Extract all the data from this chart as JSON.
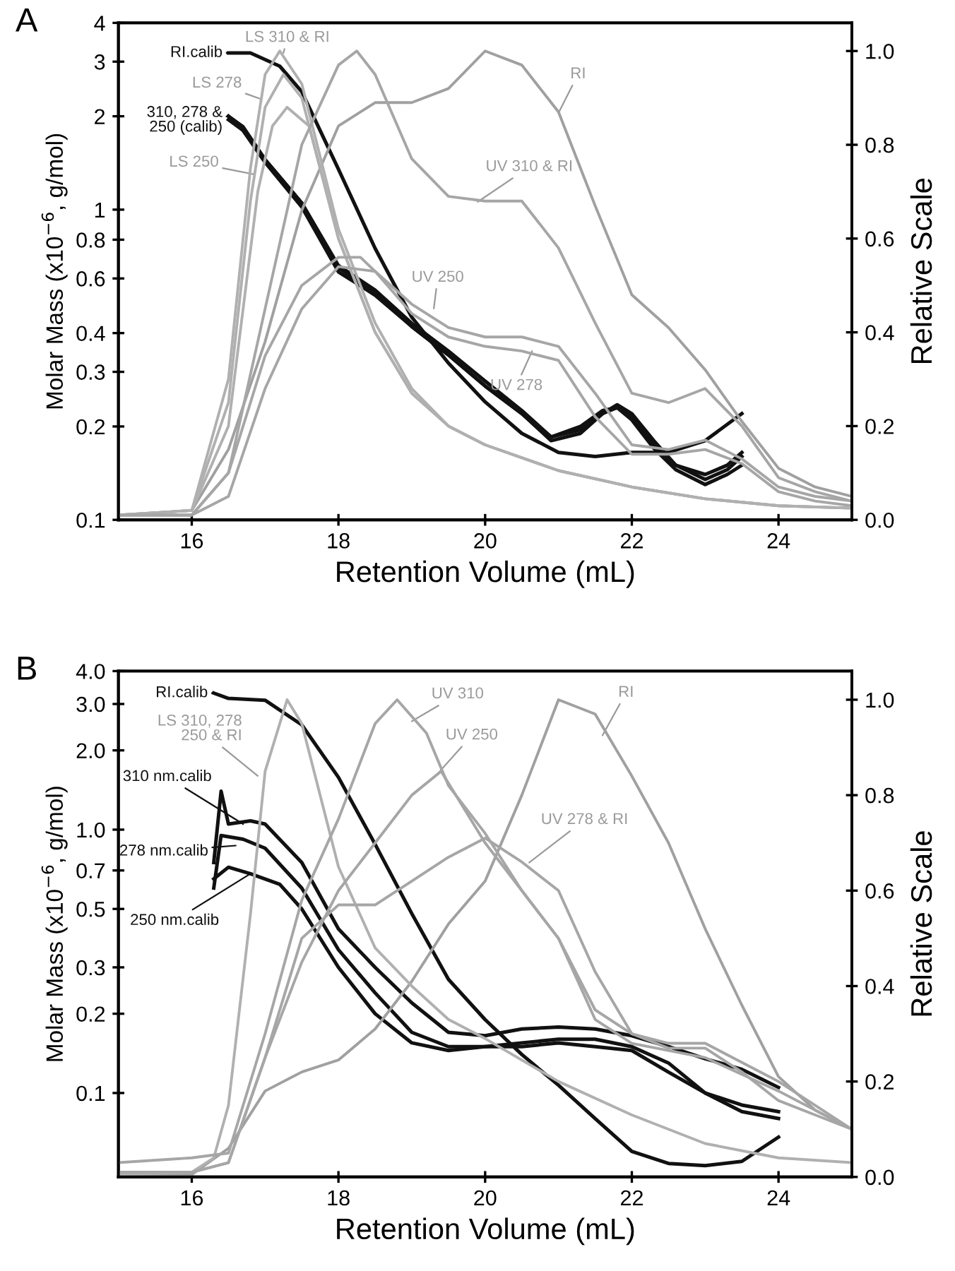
{
  "chart_data": [
    {
      "type": "line",
      "title": "A",
      "xlabel": "Retention Volume (mL)",
      "ylabel": "Molar Mass (x10$^{−6}$, g/mol)",
      "y2label": "Relative Scale",
      "log": "y",
      "xlim": [
        15,
        25
      ],
      "xticks": [
        16,
        18,
        20,
        22,
        24
      ],
      "ylim": [
        0.1,
        4
      ],
      "yticks": [
        0.1,
        0.2,
        0.3,
        0.4,
        0.6,
        0.8,
        1,
        2,
        3,
        4
      ],
      "y2lim": [
        0,
        1.06
      ],
      "y2ticks": [
        {
          "value": 0,
          "label": "0.0"
        },
        {
          "value": 0.2,
          "label": "0.2"
        },
        {
          "value": 0.4,
          "label": "0.4"
        },
        {
          "value": 0.6,
          "label": "0.6"
        },
        {
          "value": 0.8,
          "label": "0.8"
        },
        {
          "value": 1,
          "label": "1.0"
        }
      ],
      "series": [
        {
          "color": "#a0a0a0",
          "axis": "y2",
          "x": [
            15,
            16,
            16.5,
            17,
            17.5,
            18,
            18.5,
            19,
            19.5,
            20,
            20.5,
            21,
            21.5,
            22,
            22.5,
            23,
            23.5,
            24,
            24.5,
            25
          ],
          "values": [
            0.01,
            0.02,
            0.15,
            0.38,
            0.66,
            0.84,
            0.89,
            0.89,
            0.92,
            1.0,
            0.97,
            0.87,
            0.67,
            0.48,
            0.41,
            0.32,
            0.21,
            0.11,
            0.07,
            0.05
          ]
        },
        {
          "color": "#b0b0b0",
          "axis": "y2",
          "x": [
            15,
            16,
            16.5,
            16.8,
            17,
            17.2,
            17.5,
            18,
            18.5,
            19,
            19.5,
            20,
            21,
            22,
            23,
            24,
            25
          ],
          "values": [
            0.01,
            0.02,
            0.3,
            0.75,
            0.95,
            1.0,
            0.93,
            0.62,
            0.42,
            0.28,
            0.2,
            0.16,
            0.105,
            0.07,
            0.045,
            0.03,
            0.025
          ]
        },
        {
          "color": "#b0b0b0",
          "axis": "y2",
          "x": [
            15,
            16,
            16.5,
            16.8,
            17,
            17.25,
            17.5,
            18,
            18.5,
            19,
            19.5,
            20,
            21,
            22,
            23,
            24,
            25
          ],
          "values": [
            0.01,
            0.02,
            0.25,
            0.68,
            0.88,
            0.95,
            0.9,
            0.6,
            0.4,
            0.27,
            0.2,
            0.16,
            0.105,
            0.07,
            0.045,
            0.03,
            0.025
          ]
        },
        {
          "color": "#b0b0b0",
          "axis": "y2",
          "x": [
            15,
            16,
            16.5,
            16.9,
            17.1,
            17.3,
            17.6,
            18,
            18.5,
            19,
            19.5,
            20,
            21,
            22,
            23,
            24,
            25
          ],
          "values": [
            0.01,
            0.02,
            0.2,
            0.7,
            0.84,
            0.88,
            0.84,
            0.6,
            0.4,
            0.27,
            0.2,
            0.16,
            0.105,
            0.07,
            0.045,
            0.03,
            0.025
          ]
        },
        {
          "color": "#a6a6a6",
          "axis": "y2",
          "x": [
            15,
            16,
            16.5,
            17,
            17.5,
            18,
            18.25,
            18.5,
            19,
            19.5,
            20,
            20.5,
            21,
            21.5,
            22,
            22.5,
            23,
            23.5,
            24,
            24.5,
            25
          ],
          "values": [
            0.01,
            0.01,
            0.1,
            0.45,
            0.8,
            0.97,
            1.0,
            0.95,
            0.77,
            0.69,
            0.68,
            0.68,
            0.58,
            0.42,
            0.27,
            0.25,
            0.28,
            0.2,
            0.09,
            0.06,
            0.04
          ]
        },
        {
          "color": "#a6a6a6",
          "axis": "y2",
          "x": [
            15,
            16,
            16.5,
            17,
            17.5,
            18,
            18.3,
            18.5,
            19,
            19.5,
            20,
            20.5,
            21,
            21.5,
            22,
            22.5,
            23,
            23.5,
            24,
            24.5,
            25
          ],
          "values": [
            0.01,
            0.01,
            0.1,
            0.35,
            0.5,
            0.56,
            0.56,
            0.53,
            0.46,
            0.41,
            0.39,
            0.39,
            0.37,
            0.27,
            0.16,
            0.15,
            0.17,
            0.13,
            0.07,
            0.05,
            0.04
          ]
        },
        {
          "color": "#a6a6a6",
          "axis": "y2",
          "x": [
            15,
            16,
            16.5,
            17,
            17.5,
            18,
            18.5,
            19,
            19.5,
            20,
            20.5,
            21,
            21.5,
            22,
            22.5,
            23,
            23.5,
            24,
            24.5,
            25
          ],
          "values": [
            0.01,
            0.01,
            0.05,
            0.28,
            0.45,
            0.54,
            0.53,
            0.44,
            0.39,
            0.37,
            0.36,
            0.34,
            0.22,
            0.14,
            0.14,
            0.15,
            0.12,
            0.06,
            0.04,
            0.03
          ]
        },
        {
          "color": "#111111",
          "x": [
            16.5,
            16.8,
            17.2,
            17.5,
            18,
            18.5,
            19,
            19.5,
            20,
            20.5,
            21,
            21.5,
            22,
            22.5,
            23,
            23.5
          ],
          "values": [
            3.2,
            3.2,
            2.9,
            2.4,
            1.35,
            0.75,
            0.45,
            0.32,
            0.24,
            0.19,
            0.165,
            0.16,
            0.165,
            0.165,
            0.18,
            0.22
          ]
        },
        {
          "color": "#111111",
          "x": [
            16.5,
            16.7,
            17,
            17.5,
            18,
            18.5,
            19,
            19.5,
            20,
            20.5,
            20.9,
            21.3,
            21.6,
            21.8,
            22,
            22.3,
            22.6,
            23,
            23.3,
            23.5
          ],
          "values": [
            2.0,
            1.85,
            1.45,
            1.05,
            0.65,
            0.54,
            0.42,
            0.34,
            0.27,
            0.22,
            0.18,
            0.19,
            0.22,
            0.235,
            0.22,
            0.18,
            0.15,
            0.135,
            0.145,
            0.16
          ]
        },
        {
          "color": "#111111",
          "x": [
            16.5,
            16.7,
            17,
            17.5,
            18,
            18.5,
            19,
            19.5,
            20,
            20.5,
            20.9,
            21.3,
            21.6,
            21.8,
            22,
            22.3,
            22.6,
            23,
            23.3,
            23.5
          ],
          "values": [
            2.0,
            1.8,
            1.42,
            1.02,
            0.63,
            0.53,
            0.42,
            0.34,
            0.27,
            0.22,
            0.185,
            0.2,
            0.225,
            0.23,
            0.215,
            0.175,
            0.15,
            0.14,
            0.15,
            0.165
          ]
        },
        {
          "color": "#111111",
          "x": [
            16.5,
            16.7,
            17,
            17.5,
            18,
            18.5,
            19,
            19.5,
            20,
            20.5,
            20.9,
            21.3,
            21.6,
            21.8,
            22,
            22.3,
            22.6,
            23,
            23.3,
            23.5
          ],
          "values": [
            1.95,
            1.8,
            1.45,
            1.05,
            0.66,
            0.55,
            0.43,
            0.35,
            0.28,
            0.225,
            0.185,
            0.195,
            0.22,
            0.23,
            0.21,
            0.17,
            0.145,
            0.13,
            0.14,
            0.15
          ]
        }
      ],
      "annotations": [
        {
          "text": "RI.calib",
          "x": 16.5,
          "y": 3.2
        },
        {
          "text": "310, 278 &\n250 (calib)",
          "x": 16.5,
          "y": 2.0
        },
        {
          "text": "LS 310 & RI",
          "x": 17.25,
          "y": 3.2
        },
        {
          "text": "LS 278",
          "x": 16.95,
          "y": 2.27
        },
        {
          "text": "LS 250",
          "x": 16.85,
          "y": 1.3
        },
        {
          "text": "RI",
          "x": 21.0,
          "y": 2.05
        },
        {
          "text": "UV 310 & RI",
          "x": 19.9,
          "y": 1.06
        },
        {
          "text": "UV 250",
          "x": 19.3,
          "y": 0.48
        },
        {
          "text": "UV 278",
          "x": 20.64,
          "y": 0.35
        }
      ]
    },
    {
      "type": "line",
      "title": "B",
      "xlabel": "Retention Volume (mL)",
      "ylabel": "Molar Mass (x10$^{−6}$, g/mol)",
      "y2label": "Relative Scale",
      "log": "y",
      "xlim": [
        15,
        25
      ],
      "xticks": [
        16,
        18,
        20,
        22,
        24
      ],
      "ylim": [
        0.048,
        4.0
      ],
      "yticks": [
        {
          "value": 0.1,
          "label": "0.1"
        },
        {
          "value": 0.2,
          "label": "0.2"
        },
        {
          "value": 0.3,
          "label": "0.3"
        },
        {
          "value": 0.5,
          "label": "0.5"
        },
        {
          "value": 0.7,
          "label": "0.7"
        },
        {
          "value": 1,
          "label": "1.0"
        },
        {
          "value": 2,
          "label": "2.0"
        },
        {
          "value": 3,
          "label": "3.0"
        },
        {
          "value": 4,
          "label": "4.0"
        }
      ],
      "y2lim": [
        0,
        1.06
      ],
      "y2ticks": [
        {
          "value": 0,
          "label": "0.0"
        },
        {
          "value": 0.2,
          "label": "0.2"
        },
        {
          "value": 0.4,
          "label": "0.4"
        },
        {
          "value": 0.6,
          "label": "0.6"
        },
        {
          "value": 0.8,
          "label": "0.8"
        },
        {
          "value": 1,
          "label": "1.0"
        }
      ],
      "series": [
        {
          "color": "#a0a0a0",
          "axis": "y2",
          "x": [
            15,
            16,
            16.5,
            17,
            17.5,
            18,
            18.5,
            19,
            19.5,
            20,
            20.5,
            21,
            21.5,
            22,
            22.5,
            23,
            23.5,
            24,
            24.5,
            25
          ],
          "values": [
            0.005,
            0.005,
            0.06,
            0.18,
            0.22,
            0.245,
            0.31,
            0.41,
            0.53,
            0.62,
            0.8,
            1.0,
            0.97,
            0.84,
            0.7,
            0.52,
            0.36,
            0.21,
            0.14,
            0.1
          ]
        },
        {
          "color": "#b0b0b0",
          "axis": "y2",
          "x": [
            15,
            16,
            16.3,
            16.5,
            16.8,
            17,
            17.3,
            17.5,
            18,
            18.5,
            19,
            19.5,
            20,
            21,
            22,
            23,
            24,
            25
          ],
          "values": [
            0.005,
            0.01,
            0.04,
            0.15,
            0.55,
            0.85,
            1.0,
            0.95,
            0.65,
            0.48,
            0.4,
            0.33,
            0.29,
            0.2,
            0.13,
            0.07,
            0.04,
            0.03
          ]
        },
        {
          "color": "#a6a6a6",
          "axis": "y2",
          "x": [
            15,
            16,
            16.5,
            17,
            17.5,
            18,
            18.5,
            18.8,
            19.2,
            19.5,
            20,
            20.5,
            21,
            21.5,
            22,
            22.5,
            23,
            23.5,
            24,
            24.5,
            25
          ],
          "values": [
            0.03,
            0.04,
            0.05,
            0.3,
            0.58,
            0.75,
            0.95,
            1.0,
            0.93,
            0.82,
            0.72,
            0.6,
            0.5,
            0.35,
            0.3,
            0.27,
            0.27,
            0.22,
            0.16,
            0.13,
            0.1
          ]
        },
        {
          "color": "#a6a6a6",
          "axis": "y2",
          "x": [
            15,
            16,
            16.5,
            17,
            17.5,
            18,
            18.5,
            19,
            19.4,
            20,
            20.5,
            21,
            21.5,
            22,
            23,
            24,
            25
          ],
          "values": [
            0.01,
            0.01,
            0.03,
            0.25,
            0.45,
            0.6,
            0.7,
            0.8,
            0.85,
            0.7,
            0.6,
            0.5,
            0.33,
            0.28,
            0.25,
            0.18,
            0.1
          ]
        },
        {
          "color": "#a6a6a6",
          "axis": "y2",
          "x": [
            15,
            16,
            16.5,
            17,
            17.5,
            18,
            18.5,
            19,
            19.5,
            20,
            20.5,
            21,
            21.5,
            22,
            22.5,
            23,
            24,
            25
          ],
          "values": [
            0.01,
            0.01,
            0.03,
            0.25,
            0.5,
            0.57,
            0.57,
            0.62,
            0.67,
            0.71,
            0.66,
            0.6,
            0.43,
            0.3,
            0.28,
            0.28,
            0.2,
            0.1
          ]
        },
        {
          "color": "#111111",
          "x": [
            16.3,
            16.5,
            17,
            17.5,
            18,
            18.5,
            19,
            19.5,
            20,
            20.5,
            21,
            21.5,
            22,
            22.5,
            23,
            23.5,
            24
          ],
          "values": [
            3.3,
            3.15,
            3.1,
            2.5,
            1.58,
            0.88,
            0.48,
            0.27,
            0.19,
            0.14,
            0.107,
            0.08,
            0.06,
            0.054,
            0.053,
            0.055,
            0.068
          ]
        },
        {
          "color": "#111111",
          "x": [
            16.3,
            16.4,
            16.5,
            16.8,
            17,
            17.5,
            18,
            18.5,
            19,
            19.5,
            20,
            20.5,
            21,
            21.5,
            22,
            22.5,
            23,
            23.5,
            24
          ],
          "values": [
            0.75,
            1.4,
            1.05,
            1.08,
            1.05,
            0.75,
            0.42,
            0.3,
            0.22,
            0.17,
            0.165,
            0.175,
            0.178,
            0.175,
            0.165,
            0.15,
            0.135,
            0.123,
            0.105
          ]
        },
        {
          "color": "#111111",
          "x": [
            16.3,
            16.4,
            16.7,
            17,
            17.5,
            18,
            18.5,
            19,
            19.5,
            20,
            20.5,
            21,
            21.5,
            22,
            22.5,
            23,
            23.5,
            24
          ],
          "values": [
            0.6,
            0.95,
            0.92,
            0.85,
            0.6,
            0.35,
            0.24,
            0.17,
            0.15,
            0.15,
            0.155,
            0.16,
            0.16,
            0.15,
            0.13,
            0.1,
            0.085,
            0.08
          ]
        },
        {
          "color": "#111111",
          "x": [
            16.3,
            16.5,
            16.8,
            17.2,
            17.5,
            18,
            18.5,
            19,
            19.5,
            20,
            20.5,
            21,
            21.5,
            22,
            22.5,
            23,
            23.5,
            24
          ],
          "values": [
            0.65,
            0.72,
            0.68,
            0.62,
            0.5,
            0.3,
            0.2,
            0.155,
            0.145,
            0.15,
            0.15,
            0.155,
            0.15,
            0.145,
            0.12,
            0.1,
            0.09,
            0.085
          ]
        }
      ],
      "annotations": [
        {
          "text": "RI.calib",
          "x": 16.3,
          "y": 3.3
        },
        {
          "text": "LS 310, 278\n250 & RI",
          "x": 16.9,
          "y": 1.6
        },
        {
          "text": "310 nm.calib",
          "x": 16.7,
          "y": 1.05
        },
        {
          "text": "278 nm.calib",
          "x": 16.6,
          "y": 0.87
        },
        {
          "text": "250 nm.calib",
          "x": 16.8,
          "y": 0.68
        },
        {
          "text": "UV 310",
          "x": 19.0,
          "y": 2.58
        },
        {
          "text": "UV 250",
          "x": 19.3,
          "y": 1.57
        },
        {
          "text": "UV 278 & RI",
          "x": 20.6,
          "y": 0.75
        },
        {
          "text": "RI",
          "x": 21.6,
          "y": 2.28
        }
      ]
    }
  ]
}
